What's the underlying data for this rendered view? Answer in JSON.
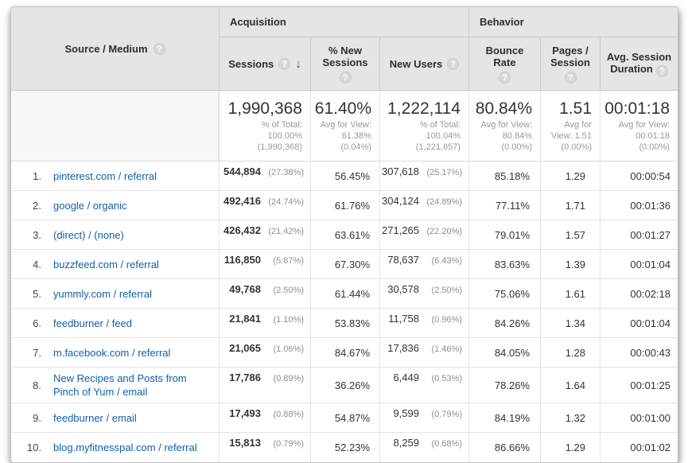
{
  "colors": {
    "link_blue": "#1160a8",
    "header_bg": "#e5e5e5",
    "border_gray": "#c9c9c9",
    "light_border": "#e4e4e4",
    "subtext_gray": "#999999"
  },
  "table": {
    "source_header": "Source / Medium",
    "help_icon": "?",
    "sort_icon": "↓",
    "groups": {
      "acquisition": "Acquisition",
      "behavior": "Behavior"
    },
    "columns": {
      "sessions": "Sessions",
      "pct_new_sessions": "% New Sessions",
      "new_users": "New Users",
      "bounce_rate": "Bounce Rate",
      "pages_session": "Pages / Session",
      "avg_duration": "Avg. Session Duration"
    }
  },
  "summary": {
    "sessions": {
      "value": "1,990,368",
      "sub": [
        "% of Total:",
        "100.00%",
        "(1,990,368)"
      ]
    },
    "pct_new_sessions": {
      "value": "61.40%",
      "sub": [
        "Avg for View:",
        "61.38%",
        "(0.04%)"
      ]
    },
    "new_users": {
      "value": "1,222,114",
      "sub": [
        "% of Total:",
        "100.04%",
        "(1,221,657)"
      ]
    },
    "bounce_rate": {
      "value": "80.84%",
      "sub": [
        "Avg for View:",
        "80.84%",
        "(0.00%)"
      ]
    },
    "pages_session": {
      "value": "1.51",
      "sub": [
        "Avg for",
        "View: 1.51",
        "(0.00%)"
      ]
    },
    "avg_duration": {
      "value": "00:01:18",
      "sub": [
        "Avg for View:",
        "00:01:18",
        "(0.00%)"
      ]
    }
  },
  "rows": [
    {
      "rank": "1.",
      "source": "pinterest.com / referral",
      "sessions": "544,894",
      "sessions_pct": "(27.38%)",
      "new_sessions_pct": "56.45%",
      "new_users": "307,618",
      "new_users_pct": "(25.17%)",
      "bounce_rate": "85.18%",
      "pages_per_session": "1.29",
      "avg_duration": "00:00:54"
    },
    {
      "rank": "2.",
      "source": "google / organic",
      "sessions": "492,416",
      "sessions_pct": "(24.74%)",
      "new_sessions_pct": "61.76%",
      "new_users": "304,124",
      "new_users_pct": "(24.89%)",
      "bounce_rate": "77.11%",
      "pages_per_session": "1.71",
      "avg_duration": "00:01:36"
    },
    {
      "rank": "3.",
      "source": "(direct) / (none)",
      "sessions": "426,432",
      "sessions_pct": "(21.42%)",
      "new_sessions_pct": "63.61%",
      "new_users": "271,265",
      "new_users_pct": "(22.20%)",
      "bounce_rate": "79.01%",
      "pages_per_session": "1.57",
      "avg_duration": "00:01:27"
    },
    {
      "rank": "4.",
      "source": "buzzfeed.com / referral",
      "sessions": "116,850",
      "sessions_pct": "(5.87%)",
      "new_sessions_pct": "67.30%",
      "new_users": "78,637",
      "new_users_pct": "(6.43%)",
      "bounce_rate": "83.63%",
      "pages_per_session": "1.39",
      "avg_duration": "00:01:04"
    },
    {
      "rank": "5.",
      "source": "yummly.com / referral",
      "sessions": "49,768",
      "sessions_pct": "(2.50%)",
      "new_sessions_pct": "61.44%",
      "new_users": "30,578",
      "new_users_pct": "(2.50%)",
      "bounce_rate": "75.06%",
      "pages_per_session": "1.61",
      "avg_duration": "00:02:18"
    },
    {
      "rank": "6.",
      "source": "feedburner / feed",
      "sessions": "21,841",
      "sessions_pct": "(1.10%)",
      "new_sessions_pct": "53.83%",
      "new_users": "11,758",
      "new_users_pct": "(0.96%)",
      "bounce_rate": "84.26%",
      "pages_per_session": "1.34",
      "avg_duration": "00:01:04"
    },
    {
      "rank": "7.",
      "source": "m.facebook.com / referral",
      "sessions": "21,065",
      "sessions_pct": "(1.06%)",
      "new_sessions_pct": "84.67%",
      "new_users": "17,836",
      "new_users_pct": "(1.46%)",
      "bounce_rate": "84.05%",
      "pages_per_session": "1.28",
      "avg_duration": "00:00:43"
    },
    {
      "rank": "8.",
      "source": "New Recipes and Posts from Pinch of Yum / email",
      "sessions": "17,786",
      "sessions_pct": "(0.89%)",
      "new_sessions_pct": "36.26%",
      "new_users": "6,449",
      "new_users_pct": "(0.53%)",
      "bounce_rate": "78.26%",
      "pages_per_session": "1.64",
      "avg_duration": "00:01:25"
    },
    {
      "rank": "9.",
      "source": "feedburner / email",
      "sessions": "17,493",
      "sessions_pct": "(0.88%)",
      "new_sessions_pct": "54.87%",
      "new_users": "9,599",
      "new_users_pct": "(0.79%)",
      "bounce_rate": "84.19%",
      "pages_per_session": "1.32",
      "avg_duration": "00:01:00"
    },
    {
      "rank": "10.",
      "source": "blog.myfitnesspal.com / referral",
      "sessions": "15,813",
      "sessions_pct": "(0.79%)",
      "new_sessions_pct": "52.23%",
      "new_users": "8,259",
      "new_users_pct": "(0.68%)",
      "bounce_rate": "86.66%",
      "pages_per_session": "1.29",
      "avg_duration": "00:01:02"
    }
  ]
}
